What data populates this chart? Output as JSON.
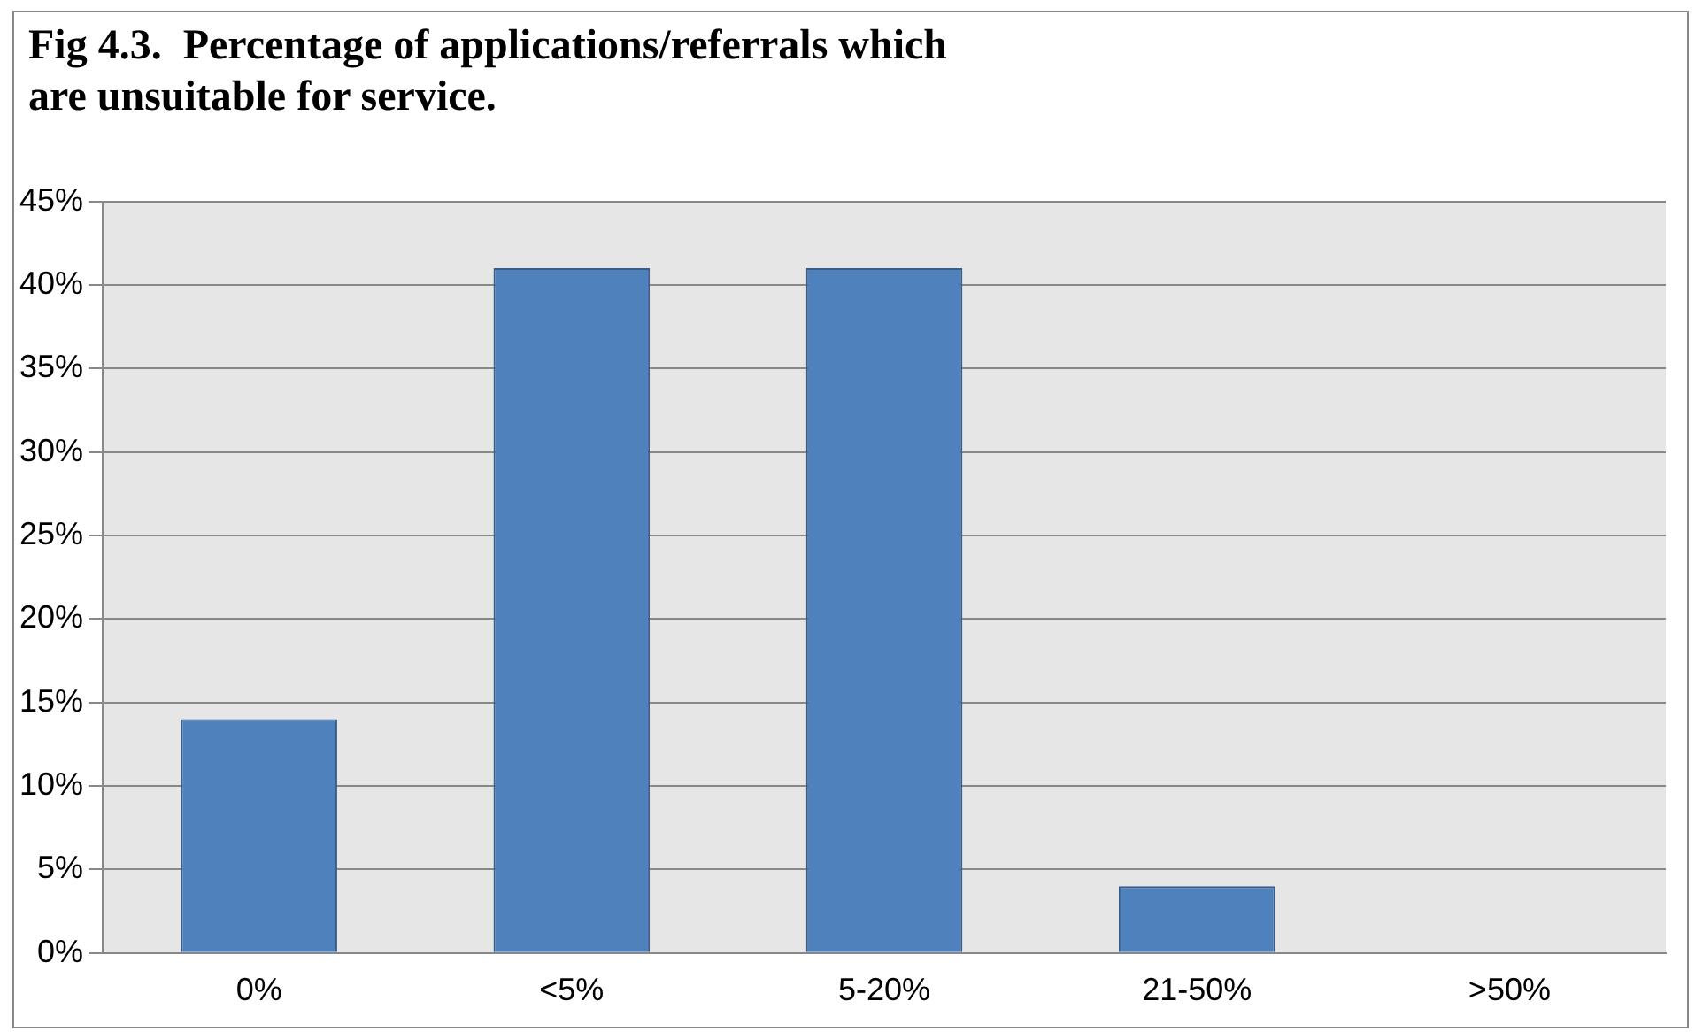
{
  "chart_data": {
    "type": "bar",
    "title": "Fig 4.3.  Percentage of applications/referrals which are unsuitable for service.",
    "categories": [
      "0%",
      "<5%",
      "5-20%",
      "21-50%",
      ">50%"
    ],
    "values": [
      14,
      41,
      41,
      4,
      0
    ],
    "color": "#4f81bd",
    "ylim": [
      0,
      45
    ],
    "yticks": [
      {
        "value": 0,
        "label": "0%"
      },
      {
        "value": 5,
        "label": "5%"
      },
      {
        "value": 10,
        "label": "10%"
      },
      {
        "value": 15,
        "label": "15%"
      },
      {
        "value": 20,
        "label": "20%"
      },
      {
        "value": 25,
        "label": "25%"
      },
      {
        "value": 30,
        "label": "30%"
      },
      {
        "value": 35,
        "label": "35%"
      },
      {
        "value": 40,
        "label": "40%"
      },
      {
        "value": 45,
        "label": "45%"
      }
    ],
    "grid": "y",
    "legend": false
  }
}
